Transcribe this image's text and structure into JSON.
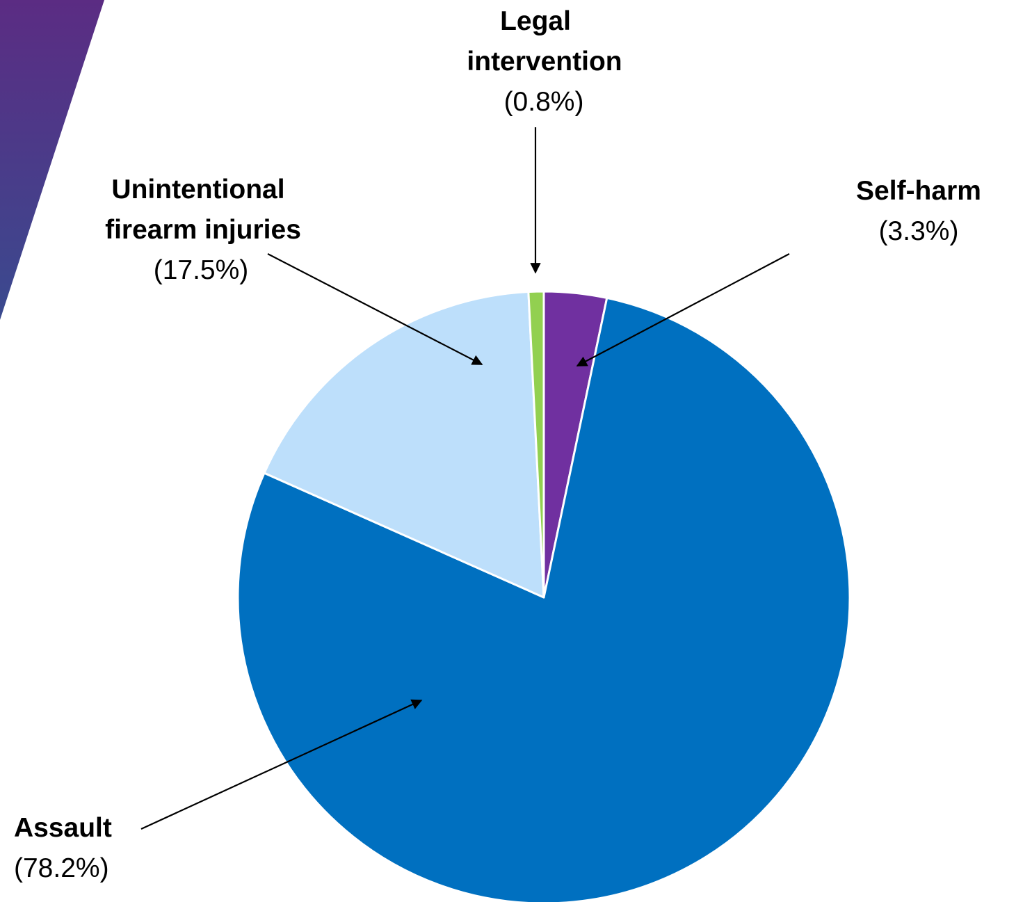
{
  "chart_data": {
    "type": "pie",
    "title": "",
    "start_angle_deg": 0,
    "direction": "clockwise",
    "slices": [
      {
        "name": "Self-harm",
        "value": 3.3,
        "label": "(3.3%)",
        "color": "#7030A0"
      },
      {
        "name": "Assault",
        "value": 78.2,
        "label": "(78.2%)",
        "color": "#0070C0"
      },
      {
        "name": "Unintentional firearm injuries",
        "value": 17.5,
        "label": "(17.5%)",
        "color": "#BDDFFB"
      },
      {
        "name": "Legal intervention",
        "value": 0.8,
        "label": "(0.8%)",
        "color": "#92D050"
      }
    ],
    "slice_border_color": "#ffffff"
  },
  "labels": {
    "self_harm": {
      "lines": [
        "Self-harm"
      ],
      "pct": "(3.3%)"
    },
    "assault": {
      "lines": [
        "Assault"
      ],
      "pct": "(78.2%)"
    },
    "unintentional": {
      "lines": [
        "Unintentional",
        "firearm injuries"
      ],
      "pct": "(17.5%)"
    },
    "legal": {
      "lines": [
        "Legal",
        "intervention"
      ],
      "pct": "(0.8%)"
    }
  },
  "decoration": {
    "corner_colors": [
      "#5B2C83",
      "#3A4A8F"
    ]
  }
}
